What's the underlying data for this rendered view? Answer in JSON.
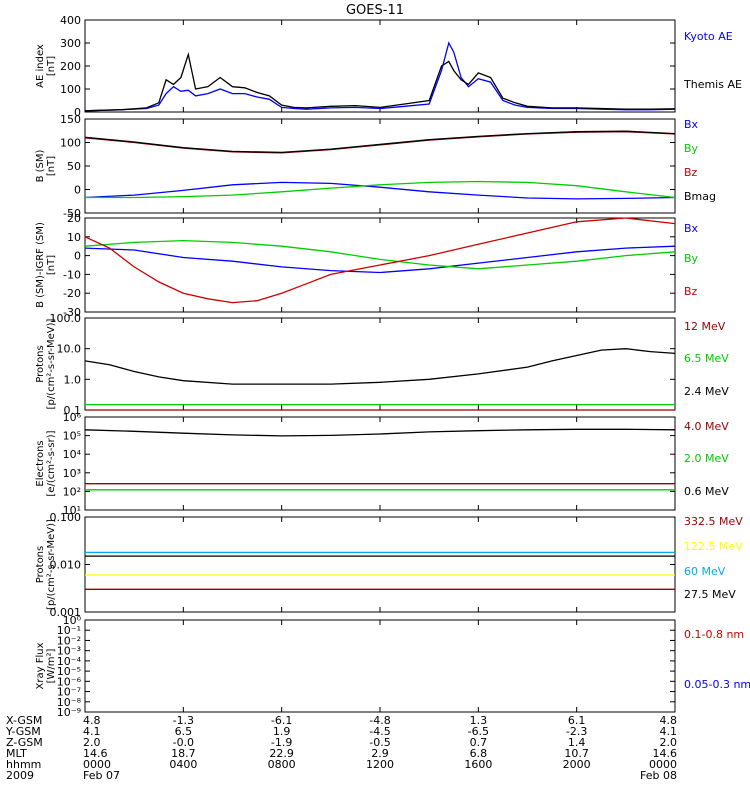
{
  "title": "GOES-11",
  "chart_data": [
    {
      "type": "line",
      "panel": "ae",
      "ylabel": [
        "AE index",
        "[nT]"
      ],
      "ylim": [
        0,
        400
      ],
      "yticks": [
        "0",
        "100",
        "200",
        "300",
        "400"
      ],
      "legend": [
        {
          "label": "Kyoto AE",
          "color": "#0000ff"
        },
        {
          "label": "Themis AE",
          "color": "#000000"
        }
      ],
      "series": [
        {
          "name": "Kyoto AE",
          "color": "#0000ff",
          "x": [
            0,
            1.5,
            2.5,
            3.0,
            3.3,
            3.6,
            3.9,
            4.2,
            4.5,
            5.0,
            5.5,
            6.0,
            6.5,
            7.0,
            7.5,
            8.0,
            8.5,
            9.0,
            10.0,
            11.0,
            12.0,
            13.0,
            14.0,
            14.5,
            14.8,
            15.0,
            15.3,
            15.6,
            16.0,
            16.5,
            17.0,
            17.5,
            18.0,
            19.0,
            20.0,
            21.0,
            22.0,
            23.0,
            24.0
          ],
          "y": [
            5,
            10,
            15,
            30,
            80,
            110,
            90,
            95,
            70,
            80,
            100,
            80,
            80,
            65,
            55,
            20,
            15,
            12,
            18,
            20,
            15,
            25,
            35,
            180,
            300,
            260,
            150,
            110,
            145,
            130,
            50,
            30,
            20,
            15,
            15,
            12,
            10,
            10,
            12
          ]
        },
        {
          "name": "Themis AE",
          "color": "#000000",
          "x": [
            0,
            1.5,
            2.5,
            3.0,
            3.3,
            3.6,
            3.9,
            4.2,
            4.5,
            5.0,
            5.5,
            6.0,
            6.5,
            7.0,
            7.5,
            8.0,
            8.5,
            9.0,
            10.0,
            11.0,
            12.0,
            13.0,
            14.0,
            14.5,
            14.8,
            15.0,
            15.3,
            15.6,
            16.0,
            16.5,
            17.0,
            17.5,
            18.0,
            19.0,
            20.0,
            21.0,
            22.0,
            23.0,
            24.0
          ],
          "y": [
            5,
            10,
            18,
            40,
            140,
            120,
            150,
            250,
            100,
            110,
            150,
            110,
            105,
            85,
            70,
            30,
            20,
            18,
            25,
            28,
            20,
            35,
            50,
            200,
            220,
            180,
            140,
            120,
            170,
            150,
            60,
            40,
            25,
            18,
            18,
            15,
            12,
            12,
            14
          ]
        }
      ]
    },
    {
      "type": "line",
      "panel": "b",
      "ylabel": [
        "B (SM)",
        "[nT]"
      ],
      "ylim": [
        -50,
        150
      ],
      "yticks": [
        "-50",
        "0",
        "50",
        "100",
        "150"
      ],
      "legend": [
        {
          "label": "Bx",
          "color": "#0000ff"
        },
        {
          "label": "By",
          "color": "#00cc00"
        },
        {
          "label": "Bz",
          "color": "#cc0000"
        },
        {
          "label": "Bmag",
          "color": "#000000"
        }
      ],
      "series": [
        {
          "name": "Bx",
          "color": "#0000ff",
          "x": [
            0,
            2,
            4,
            6,
            8,
            10,
            12,
            14,
            16,
            18,
            20,
            22,
            24
          ],
          "y": [
            -17,
            -12,
            -2,
            10,
            15,
            13,
            5,
            -5,
            -12,
            -18,
            -20,
            -19,
            -17
          ]
        },
        {
          "name": "By",
          "color": "#00cc00",
          "x": [
            0,
            2,
            4,
            6,
            8,
            10,
            12,
            14,
            16,
            18,
            20,
            22,
            24
          ],
          "y": [
            -17,
            -17,
            -15,
            -12,
            -5,
            3,
            10,
            15,
            17,
            15,
            8,
            -5,
            -17
          ]
        },
        {
          "name": "Bz",
          "color": "#990000",
          "x": [
            0,
            2,
            4,
            6,
            8,
            10,
            12,
            14,
            16,
            18,
            20,
            22,
            24
          ],
          "y": [
            110,
            100,
            88,
            80,
            78,
            85,
            95,
            105,
            112,
            118,
            122,
            123,
            118
          ]
        },
        {
          "name": "Bmag",
          "color": "#000000",
          "x": [
            0,
            2,
            4,
            6,
            8,
            10,
            12,
            14,
            16,
            18,
            20,
            22,
            24
          ],
          "y": [
            111,
            101,
            89,
            81,
            79,
            86,
            96,
            106,
            113,
            119,
            123,
            124,
            119
          ]
        }
      ]
    },
    {
      "type": "line",
      "panel": "bdiff",
      "ylabel": [
        "B (SM)-IGRF (SM)",
        "[nT]"
      ],
      "ylim": [
        -30,
        20
      ],
      "yticks": [
        "-30",
        "-20",
        "-10",
        "0",
        "10",
        "20"
      ],
      "legend": [
        {
          "label": "Bx",
          "color": "#0000ff"
        },
        {
          "label": "By",
          "color": "#00cc00"
        },
        {
          "label": "Bz",
          "color": "#cc0000"
        }
      ],
      "series": [
        {
          "name": "Bx",
          "color": "#0000ff",
          "x": [
            0,
            2,
            4,
            6,
            8,
            10,
            12,
            14,
            16,
            18,
            20,
            22,
            24
          ],
          "y": [
            4,
            3,
            -1,
            -3,
            -6,
            -8,
            -9,
            -7,
            -4,
            -1,
            2,
            4,
            5
          ]
        },
        {
          "name": "By",
          "color": "#00cc00",
          "x": [
            0,
            2,
            4,
            6,
            8,
            10,
            12,
            14,
            16,
            18,
            20,
            22,
            24
          ],
          "y": [
            5,
            7,
            8,
            7,
            5,
            2,
            -2,
            -5,
            -7,
            -5,
            -3,
            0,
            2
          ]
        },
        {
          "name": "Bz",
          "color": "#cc0000",
          "x": [
            0,
            1,
            2,
            3,
            4,
            5,
            6,
            7,
            8,
            9,
            10,
            12,
            14,
            16,
            18,
            20,
            22,
            24
          ],
          "y": [
            10,
            4,
            -6,
            -14,
            -20,
            -23,
            -25,
            -24,
            -20,
            -15,
            -10,
            -5,
            0,
            6,
            12,
            18,
            20,
            17
          ]
        }
      ]
    },
    {
      "type": "line",
      "panel": "protons",
      "scale": "log",
      "ylabel": [
        "Protons",
        "[p/(cm²-s-sr-MeV)]"
      ],
      "ylim": [
        0.1,
        100
      ],
      "yticks": [
        "0.1",
        "1.0",
        "10.0",
        "100.0"
      ],
      "legend": [
        {
          "label": "12 MeV",
          "color": "#990000"
        },
        {
          "label": "6.5 MeV",
          "color": "#00cc00"
        },
        {
          "label": "2.4 MeV",
          "color": "#000000"
        }
      ],
      "series": [
        {
          "name": "12 MeV",
          "color": "#990000",
          "x": [
            0,
            24
          ],
          "y": [
            0.1,
            0.1
          ]
        },
        {
          "name": "6.5 MeV",
          "color": "#00cc00",
          "x": [
            0,
            24
          ],
          "y": [
            0.15,
            0.15
          ]
        },
        {
          "name": "2.4 MeV",
          "color": "#000000",
          "x": [
            0,
            1,
            2,
            3,
            4,
            6,
            8,
            10,
            12,
            14,
            16,
            18,
            19,
            20,
            21,
            22,
            23,
            24
          ],
          "y": [
            4,
            3,
            1.8,
            1.2,
            0.9,
            0.7,
            0.7,
            0.7,
            0.8,
            1.0,
            1.5,
            2.5,
            4,
            6,
            9,
            10,
            8,
            7
          ]
        }
      ]
    },
    {
      "type": "line",
      "panel": "electrons",
      "scale": "log",
      "ylabel": [
        "Electrons",
        "[e/(cm²-s-sr)]"
      ],
      "ylim": [
        1,
        1000000
      ],
      "yticks": [
        "10¹",
        "10²",
        "10³",
        "10⁴",
        "10⁵",
        "10⁶"
      ],
      "legend": [
        {
          "label": "4.0 MeV",
          "color": "#990000"
        },
        {
          "label": "2.0 MeV",
          "color": "#00cc00"
        },
        {
          "label": "0.6 MeV",
          "color": "#000000"
        }
      ],
      "series": [
        {
          "name": "4.0 MeV",
          "color": "#990000",
          "x": [
            0,
            24
          ],
          "y": [
            50,
            50
          ]
        },
        {
          "name": "2.0 MeV",
          "color": "#00cc00",
          "x": [
            0,
            24
          ],
          "y": [
            20,
            20
          ]
        },
        {
          "name": "0.6 MeV",
          "color": "#000000",
          "x": [
            0,
            2,
            4,
            6,
            8,
            10,
            12,
            14,
            16,
            18,
            20,
            22,
            24
          ],
          "y": [
            150000,
            120000,
            90000,
            70000,
            60000,
            65000,
            80000,
            110000,
            130000,
            150000,
            160000,
            160000,
            150000
          ]
        }
      ]
    },
    {
      "type": "line",
      "panel": "hiprotons",
      "scale": "log",
      "ylabel": [
        "Protons",
        "[p/(cm²-s-sr-MeV)]"
      ],
      "ylim": [
        0.001,
        0.1
      ],
      "yticks": [
        "0.001",
        "0.010",
        "0.100"
      ],
      "legend": [
        {
          "label": "332.5 MeV",
          "color": "#990000"
        },
        {
          "label": "122.5 MeV",
          "color": "#ffff00"
        },
        {
          "label": "60 MeV",
          "color": "#00aaee"
        },
        {
          "label": "27.5 MeV",
          "color": "#000000"
        }
      ],
      "series": [
        {
          "name": "332.5 MeV",
          "color": "#990000",
          "x": [
            0,
            24
          ],
          "y": [
            0.003,
            0.003
          ]
        },
        {
          "name": "122.5 MeV",
          "color": "#ffff00",
          "x": [
            0,
            24
          ],
          "y": [
            0.006,
            0.006
          ]
        },
        {
          "name": "60 MeV",
          "color": "#00aaee",
          "x": [
            0,
            24
          ],
          "y": [
            0.018,
            0.018
          ]
        },
        {
          "name": "27.5 MeV",
          "color": "#000000",
          "x": [
            0,
            24
          ],
          "y": [
            0.015,
            0.015
          ]
        }
      ]
    },
    {
      "type": "line",
      "panel": "xray",
      "scale": "log",
      "ylabel": [
        "Xray Flux",
        "[W/m²]"
      ],
      "ylim": [
        1e-09,
        1
      ],
      "yticks": [
        "10⁻⁹",
        "10⁻⁸",
        "10⁻⁷",
        "10⁻⁶",
        "10⁻⁵",
        "10⁻⁴",
        "10⁻³",
        "10⁻²",
        "10⁻¹",
        "10⁰"
      ],
      "legend": [
        {
          "label": "0.1-0.8 nm",
          "color": "#cc0000"
        },
        {
          "label": "0.05-0.3 nm",
          "color": "#0000ff"
        }
      ],
      "series": []
    }
  ],
  "orbit_table": {
    "rows": [
      {
        "label": "X-GSM",
        "values": [
          "4.8",
          "-1.3",
          "-6.1",
          "-4.8",
          "1.3",
          "6.1",
          "4.8"
        ]
      },
      {
        "label": "Y-GSM",
        "values": [
          "4.1",
          "6.5",
          "1.9",
          "-4.5",
          "-6.5",
          "-2.3",
          "4.1"
        ]
      },
      {
        "label": "Z-GSM",
        "values": [
          "2.0",
          "-0.0",
          "-1.9",
          "-0.5",
          "0.7",
          "1.4",
          "2.0"
        ]
      },
      {
        "label": "MLT",
        "values": [
          "14.6",
          "18.7",
          "22.9",
          "2.9",
          "6.8",
          "10.7",
          "14.6"
        ]
      },
      {
        "label": "hhmm",
        "values": [
          "0000",
          "0400",
          "0800",
          "1200",
          "1600",
          "2000",
          "0000"
        ]
      },
      {
        "label": "2009",
        "values": [
          "Feb 07",
          "",
          "",
          "",
          "",
          "",
          "Feb 08"
        ]
      }
    ]
  }
}
